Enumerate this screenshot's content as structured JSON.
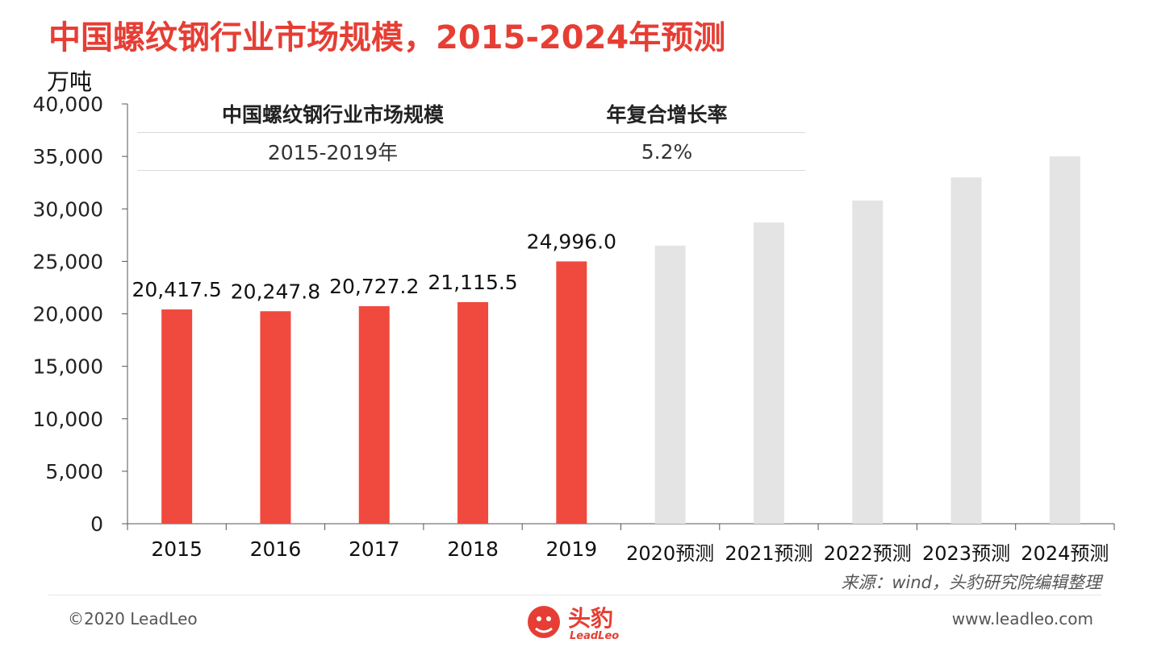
{
  "header": {
    "title": "中国螺纹钢行业市场规模，2015-2024年预测"
  },
  "unit_label": "万吨",
  "summary_table": {
    "headers": [
      "中国螺纹钢行业市场规模",
      "年复合增长率"
    ],
    "row": [
      "2015-2019年",
      "5.2%"
    ]
  },
  "chart_data": {
    "type": "bar",
    "categories": [
      "2015",
      "2016",
      "2017",
      "2018",
      "2019",
      "2020预测",
      "2021预测",
      "2022预测",
      "2023预测",
      "2024预测"
    ],
    "values": [
      20417.5,
      20247.8,
      20727.2,
      21115.5,
      24996.0,
      26500,
      28700,
      30800,
      33000,
      35000
    ],
    "data_labels": [
      "20,417.5",
      "20,247.8",
      "20,727.2",
      "21,115.5",
      "24,996.0",
      "",
      "",
      "",
      "",
      ""
    ],
    "ylim": [
      0,
      40000
    ],
    "yticks": [
      "0",
      "5,000",
      "10,000",
      "15,000",
      "20,000",
      "25,000",
      "30,000",
      "35,000",
      "40,000"
    ],
    "ylabel": "万吨",
    "grid": false,
    "colors": {
      "actual": "#f0493e",
      "forecast": "#e4e4e4",
      "axis": "#555555"
    }
  },
  "footer": {
    "source": "来源：wind，头豹研究院编辑整理",
    "copyright": "©2020 LeadLeo",
    "website": "www.leadleo.com",
    "logo_text": "头豹",
    "logo_sub": "LeadLeo"
  }
}
